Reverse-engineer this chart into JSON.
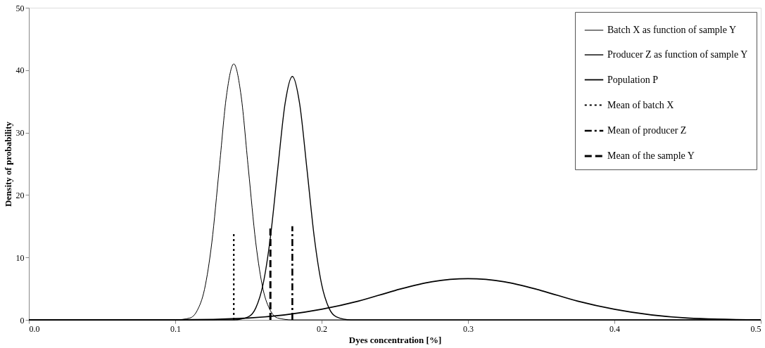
{
  "chart_data": {
    "type": "line",
    "xlabel": "Dyes concentration [%]",
    "ylabel": "Density of probability",
    "xlim": [
      0,
      0.5
    ],
    "xticks": [
      {
        "value": 0,
        "label": "0.0"
      },
      {
        "value": 0.1,
        "label": "0.1"
      },
      {
        "value": 0.2,
        "label": "0.2"
      },
      {
        "value": 0.3,
        "label": "0.3"
      },
      {
        "value": 0.4,
        "label": "0.4"
      },
      {
        "value": 0.5,
        "label": "0.5"
      }
    ],
    "ylim": [
      0,
      50
    ],
    "yticks": [
      0,
      10,
      20,
      30,
      40,
      50
    ],
    "grid": false,
    "legend": "top right",
    "marker": "none",
    "series": [
      {
        "name": "Batch X as function of sample Y",
        "color": "#000000",
        "line_style": "solid",
        "x": [
          0,
          0.08,
          0.1,
          0.11,
          0.115,
          0.12,
          0.125,
          0.13,
          0.135,
          0.14,
          0.145,
          0.15,
          0.155,
          0.16,
          0.165,
          0.17,
          0.18,
          0.2,
          0.5
        ],
        "values": [
          0,
          0,
          0,
          0.3,
          1.5,
          4.9,
          12.4,
          24.1,
          35.9,
          41,
          35.9,
          24.1,
          12.4,
          4.9,
          1.5,
          0.3,
          0,
          0,
          0
        ]
      },
      {
        "name": "Producer Z as function of sample Y",
        "color": "#000000",
        "line_style": "solid",
        "x": [
          0,
          0.13,
          0.14,
          0.15,
          0.155,
          0.16,
          0.165,
          0.17,
          0.175,
          0.18,
          0.185,
          0.19,
          0.195,
          0.2,
          0.205,
          0.21,
          0.22,
          0.5
        ],
        "values": [
          0,
          0,
          0,
          0.5,
          1.9,
          5.7,
          13.2,
          24.1,
          34.6,
          39,
          34.6,
          24.1,
          13.2,
          5.7,
          1.9,
          0.5,
          0,
          0
        ]
      },
      {
        "name": "Population P",
        "color": "#000000",
        "line_style": "solid",
        "x": [
          0,
          0.1,
          0.15,
          0.2,
          0.225,
          0.25,
          0.275,
          0.3,
          0.325,
          0.35,
          0.375,
          0.4,
          0.45,
          0.5
        ],
        "values": [
          0,
          0,
          0.3,
          1.7,
          3.0,
          4.7,
          6.1,
          6.6,
          6.1,
          4.7,
          3.0,
          1.7,
          0.3,
          0
        ]
      },
      {
        "name": "Mean of batch X",
        "color": "#000000",
        "line_style": "dotted",
        "x": [
          0.14,
          0.14
        ],
        "values": [
          0,
          14
        ]
      },
      {
        "name": "Mean of producer Z",
        "color": "#000000",
        "line_style": "dashdot",
        "x": [
          0.18,
          0.18
        ],
        "values": [
          0,
          15
        ]
      },
      {
        "name": "Mean of the sample Y",
        "color": "#000000",
        "line_style": "dashed",
        "x": [
          0.165,
          0.165
        ],
        "values": [
          0,
          15
        ]
      }
    ]
  }
}
